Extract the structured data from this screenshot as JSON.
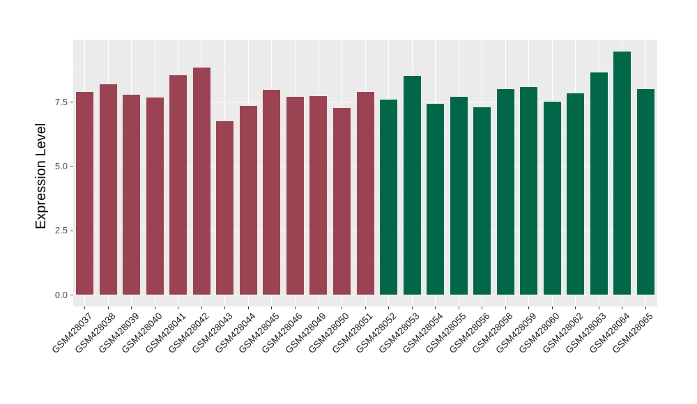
{
  "chart_data": {
    "type": "bar",
    "title": "",
    "xlabel": "",
    "ylabel": "Expression Level",
    "ylim": [
      0,
      9.92
    ],
    "ytick_labels": [
      "0.0",
      "2.5",
      "5.0",
      "7.5"
    ],
    "ytick_values": [
      0,
      2.5,
      5.0,
      7.5
    ],
    "minor_gridline_values": [
      1.25,
      3.75,
      6.25,
      8.75
    ],
    "legend_position": "none",
    "grid": "horizontal major+minor, vertical major at category centers",
    "group_colors": {
      "left_group": "#9B4353",
      "right_group": "#006849"
    },
    "categories": [
      "GSM428037",
      "GSM428038",
      "GSM428039",
      "GSM428040",
      "GSM428041",
      "GSM428042",
      "GSM428043",
      "GSM428044",
      "GSM428045",
      "GSM428046",
      "GSM428049",
      "GSM428050",
      "GSM428051",
      "GSM428052",
      "GSM428053",
      "GSM428054",
      "GSM428055",
      "GSM428056",
      "GSM428058",
      "GSM428059",
      "GSM428060",
      "GSM428062",
      "GSM428063",
      "GSM428064",
      "GSM428065"
    ],
    "values": [
      7.89,
      8.19,
      7.77,
      7.67,
      8.52,
      8.83,
      6.74,
      7.35,
      7.95,
      7.68,
      7.72,
      7.25,
      7.88,
      7.58,
      8.5,
      7.42,
      7.69,
      7.28,
      8.0,
      8.07,
      7.5,
      7.82,
      8.65,
      9.44,
      7.99
    ],
    "bars": [
      {
        "label": "GSM428037",
        "value": 7.89,
        "group": "left_group"
      },
      {
        "label": "GSM428038",
        "value": 8.19,
        "group": "left_group"
      },
      {
        "label": "GSM428039",
        "value": 7.77,
        "group": "left_group"
      },
      {
        "label": "GSM428040",
        "value": 7.67,
        "group": "left_group"
      },
      {
        "label": "GSM428041",
        "value": 8.52,
        "group": "left_group"
      },
      {
        "label": "GSM428042",
        "value": 8.83,
        "group": "left_group"
      },
      {
        "label": "GSM428043",
        "value": 6.74,
        "group": "left_group"
      },
      {
        "label": "GSM428044",
        "value": 7.35,
        "group": "left_group"
      },
      {
        "label": "GSM428045",
        "value": 7.95,
        "group": "left_group"
      },
      {
        "label": "GSM428046",
        "value": 7.68,
        "group": "left_group"
      },
      {
        "label": "GSM428049",
        "value": 7.72,
        "group": "left_group"
      },
      {
        "label": "GSM428050",
        "value": 7.25,
        "group": "left_group"
      },
      {
        "label": "GSM428051",
        "value": 7.88,
        "group": "left_group"
      },
      {
        "label": "GSM428052",
        "value": 7.58,
        "group": "right_group"
      },
      {
        "label": "GSM428053",
        "value": 8.5,
        "group": "right_group"
      },
      {
        "label": "GSM428054",
        "value": 7.42,
        "group": "right_group"
      },
      {
        "label": "GSM428055",
        "value": 7.69,
        "group": "right_group"
      },
      {
        "label": "GSM428056",
        "value": 7.28,
        "group": "right_group"
      },
      {
        "label": "GSM428058",
        "value": 8.0,
        "group": "right_group"
      },
      {
        "label": "GSM428059",
        "value": 8.07,
        "group": "right_group"
      },
      {
        "label": "GSM428060",
        "value": 7.5,
        "group": "right_group"
      },
      {
        "label": "GSM428062",
        "value": 7.82,
        "group": "right_group"
      },
      {
        "label": "GSM428063",
        "value": 8.65,
        "group": "right_group"
      },
      {
        "label": "GSM428064",
        "value": 9.44,
        "group": "right_group"
      },
      {
        "label": "GSM428065",
        "value": 7.99,
        "group": "right_group"
      }
    ],
    "style": {
      "panel_background": "#EBEBEB",
      "gridline_color": "#FFFFFF",
      "tick_mark_color": "#333333",
      "ytick_text_color": "#4D4D4D",
      "xtick_text_color": "#1A1A1A",
      "axis_title_color": "#000000"
    }
  }
}
